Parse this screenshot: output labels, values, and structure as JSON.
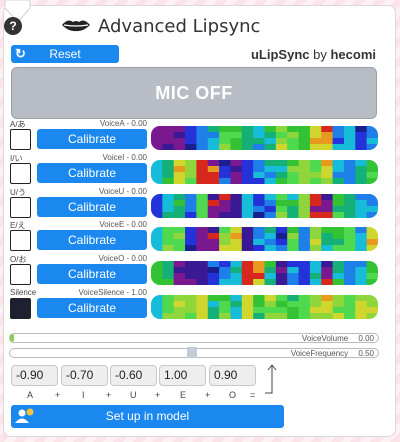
{
  "header": {
    "title": "Advanced Lipsync",
    "help_label": "?",
    "reset_label": "Reset",
    "brand_name": "uLipSync",
    "brand_by": "by",
    "brand_author": "hecomi"
  },
  "mic_button_label": "MIC OFF",
  "phonemes": [
    {
      "label": "A/あ",
      "voice": "VoiceA",
      "value": "0.00",
      "button": "Calibrate",
      "filled": false
    },
    {
      "label": "I/い",
      "voice": "VoiceI",
      "value": "0.00",
      "button": "Calibrate",
      "filled": false
    },
    {
      "label": "U/う",
      "voice": "VoiceU",
      "value": "0.00",
      "button": "Calibrate",
      "filled": false
    },
    {
      "label": "E/え",
      "voice": "VoiceE",
      "value": "0.00",
      "button": "Calibrate",
      "filled": false
    },
    {
      "label": "O/お",
      "voice": "VoiceO",
      "value": "0.00",
      "button": "Calibrate",
      "filled": false
    },
    {
      "label": "Silence",
      "voice": "VoiceSilence",
      "value": "1.00",
      "button": "Calibrate",
      "filled": true
    }
  ],
  "meters": {
    "volume": {
      "name": "VoiceVolume",
      "value": "0.00",
      "level": 0.0
    },
    "frequency": {
      "name": "VoiceFrequency",
      "value": "0.50",
      "level": 0.5
    }
  },
  "weights": [
    "-0.90",
    "-0.70",
    "-0.60",
    "1.00",
    "0.90"
  ],
  "formula": [
    "A",
    "+",
    "I",
    "+",
    "U",
    "+",
    "E",
    "+",
    "O",
    "="
  ],
  "setup_button_label": "Set up in model",
  "colors": {
    "accent": "#1a88ee",
    "mic_off_bg": "#b8bcc5",
    "volume_fill": "#8fcd5a"
  },
  "icons": {
    "help": "help-icon",
    "lips": "lips-icon",
    "reset": "refresh-icon",
    "setup": "avatar-setup-icon"
  }
}
